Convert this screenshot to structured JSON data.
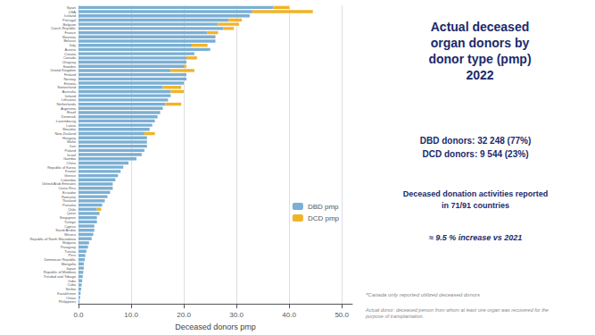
{
  "chart_data": {
    "type": "bar",
    "orientation": "horizontal",
    "stacked": true,
    "title": "Actual deceased\norgan donors by\ndonor type (pmp)\n2022",
    "title_color": "#1B2A6B",
    "xlabel": "Deceased donors pmp",
    "categories": [
      "Spain",
      "USA",
      "Iceland",
      "Portugal",
      "Belgium",
      "Czech Republic",
      "France",
      "Slovenia",
      "Belarus",
      "Italy",
      "Austria",
      "Croatia",
      "Canada",
      "Uruguay",
      "Sweden",
      "United Kingdom",
      "Finland",
      "Norway",
      "Estonia",
      "Switzerland",
      "Australia",
      "Ireland",
      "Lithuania",
      "Netherlands",
      "Argentina",
      "Brazil",
      "Denmark",
      "Luxembourg",
      "Latvia",
      "Slovakia",
      "New Zealand",
      "Hungary",
      "Malta",
      "Iran",
      "Poland",
      "Israel",
      "Gambia",
      "China",
      "Republic of Korea",
      "Kuwait",
      "Greece",
      "Colombia",
      "United Arab Emirates",
      "Costa Rica",
      "Ecuador",
      "Romania",
      "Thailand",
      "Panama",
      "Chile",
      "Qatar",
      "Singapore",
      "Türkiye",
      "Cyprus",
      "Saudi Arabia",
      "Mexico",
      "Republic of North Macedonia",
      "Bulgaria",
      "Paraguay",
      "Tunisia",
      "Peru",
      "Dominican Republic",
      "Mongolia",
      "Japan",
      "Republic of Moldova",
      "Trinidad and Tobago",
      "India",
      "Cuba",
      "Serbia",
      "Kazakhstan",
      "Oman",
      "Philippines"
    ],
    "series": [
      {
        "name": "DBD pmp",
        "color": "#7BAFD4",
        "values": [
          37.0,
          33.0,
          32.5,
          28.5,
          26.5,
          27.5,
          24.5,
          26.0,
          26.0,
          21.5,
          25.0,
          22.0,
          20.5,
          20.5,
          20.0,
          17.5,
          20.5,
          20.5,
          20.0,
          16.0,
          17.5,
          17.5,
          17.0,
          16.5,
          16.0,
          15.5,
          15.0,
          14.5,
          14.0,
          13.5,
          12.5,
          13.0,
          13.0,
          13.0,
          12.5,
          12.0,
          11.0,
          9.5,
          8.5,
          8.0,
          7.5,
          7.0,
          6.5,
          6.5,
          6.0,
          5.5,
          5.0,
          4.5,
          3.5,
          4.0,
          3.5,
          3.5,
          3.0,
          3.0,
          2.8,
          2.5,
          2.0,
          1.8,
          1.5,
          1.3,
          1.2,
          1.0,
          1.0,
          0.9,
          0.8,
          0.7,
          0.6,
          0.5,
          0.4,
          0.3,
          0.2
        ]
      },
      {
        "name": "DCD pmp",
        "color": "#F0B429",
        "values": [
          3.0,
          11.5,
          0.0,
          2.5,
          4.0,
          2.0,
          2.0,
          0.0,
          0.0,
          3.0,
          0.0,
          0.0,
          2.0,
          0.0,
          0.5,
          4.5,
          0.0,
          0.0,
          0.0,
          3.5,
          2.5,
          0.0,
          0.0,
          3.0,
          0.0,
          0.0,
          0.0,
          0.0,
          0.0,
          0.0,
          2.0,
          0.0,
          0.0,
          0.0,
          0.0,
          0.0,
          0.0,
          0.0,
          0.0,
          0.0,
          0.0,
          0.0,
          0.0,
          0.0,
          0.0,
          0.0,
          0.0,
          0.0,
          0.8,
          0.0,
          0.0,
          0.0,
          0.0,
          0.0,
          0.0,
          0.0,
          0.0,
          0.0,
          0.0,
          0.0,
          0.0,
          0.0,
          0.0,
          0.0,
          0.0,
          0.0,
          0.0,
          0.0,
          0.0,
          0.0,
          0.0
        ]
      }
    ],
    "xlim": [
      0,
      52
    ],
    "xticks": [
      {
        "value": 0,
        "label": "0.0"
      },
      {
        "value": 10,
        "label": "10.0"
      },
      {
        "value": 20,
        "label": "20.0"
      },
      {
        "value": 30,
        "label": "30.0"
      },
      {
        "value": 40,
        "label": "40.0"
      },
      {
        "value": 50,
        "label": "50.0"
      }
    ],
    "grid": true,
    "legend": "right",
    "annotations": [
      "DBD donors: 32 248 (77%)\nDCD donors: 9 544 (23%)",
      "Deceased donation activities reported\nin 71/91 countries",
      "≈ 9.5 % increase vs 2021",
      "*Canada only reported utilized deceased donors",
      "Actual donor: deceased person from whom at least one organ was recovered for the\npurpose of transplantation."
    ]
  }
}
